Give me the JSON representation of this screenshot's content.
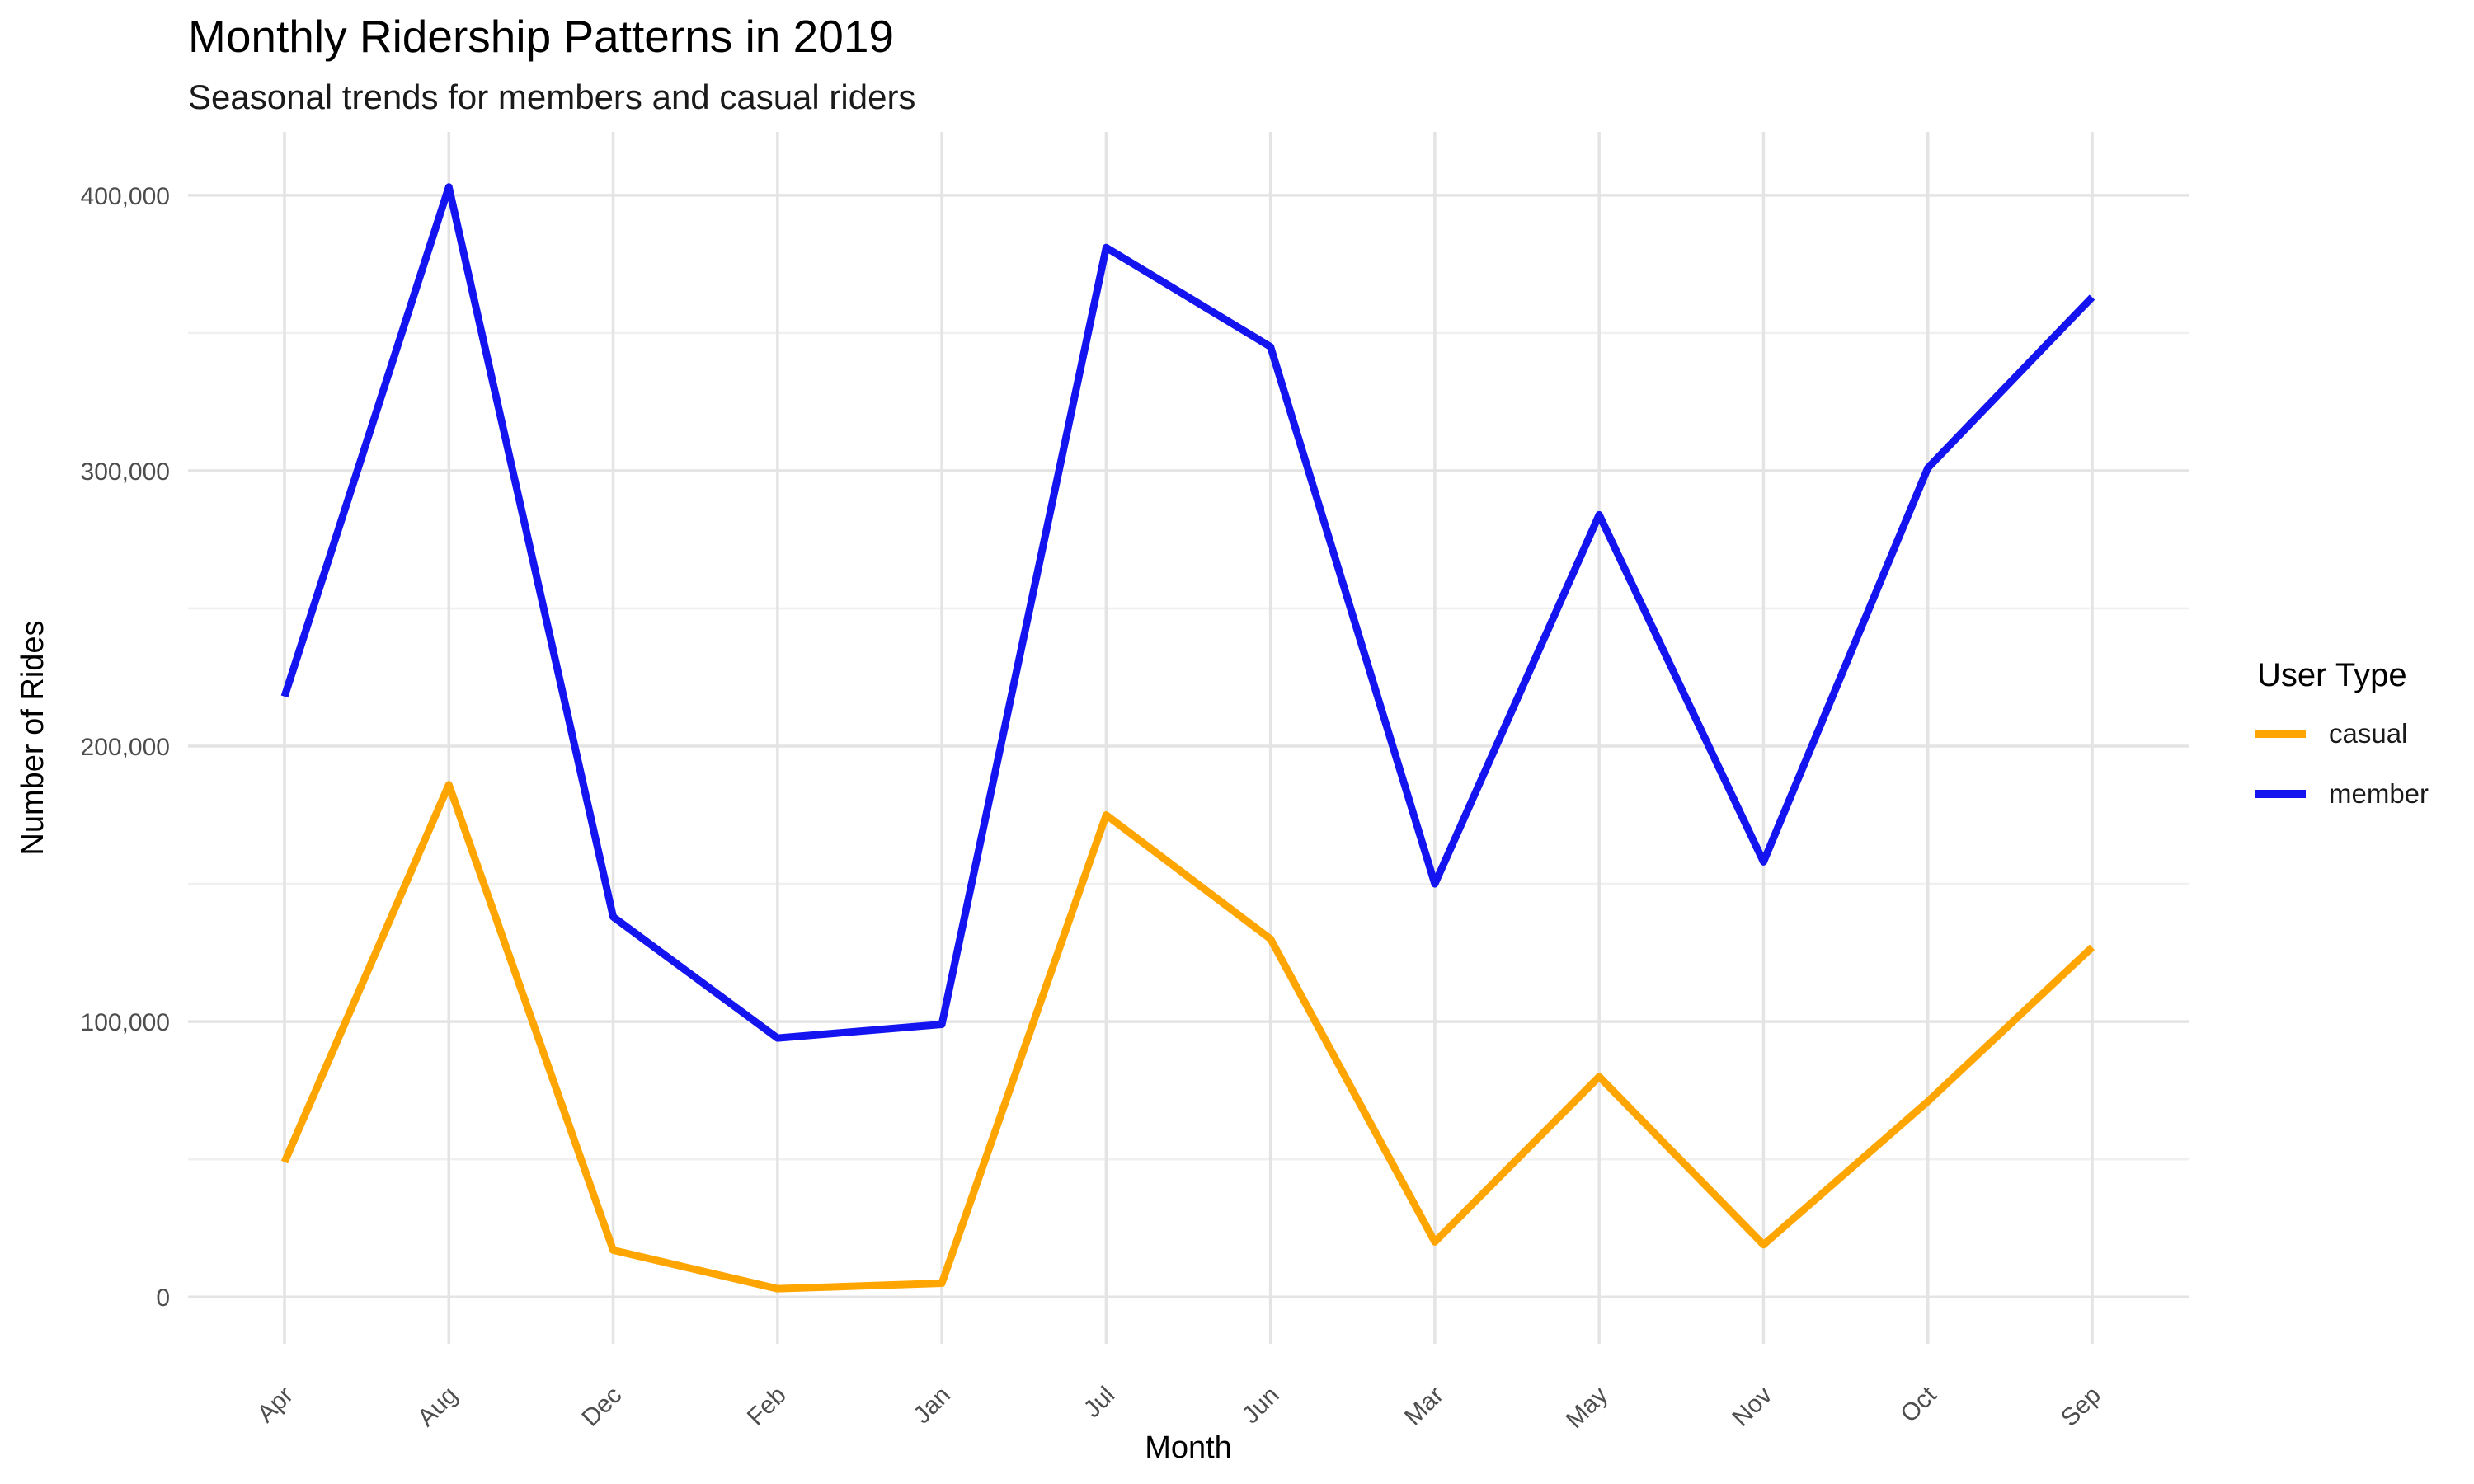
{
  "chart_data": {
    "type": "line",
    "title": "Monthly Ridership Patterns in 2019",
    "subtitle": "Seasonal trends for members and casual riders",
    "xlabel": "Month",
    "ylabel": "Number of Rides",
    "legend_title": "User Type",
    "legend_position": "right",
    "grid": true,
    "categories": [
      "Apr",
      "Aug",
      "Dec",
      "Feb",
      "Jan",
      "Jul",
      "Jun",
      "Mar",
      "May",
      "Nov",
      "Oct",
      "Sep"
    ],
    "series": [
      {
        "name": "casual",
        "color": "#FFA500",
        "values": [
          49000,
          186000,
          17000,
          3000,
          5000,
          175000,
          130000,
          20000,
          80000,
          19000,
          71000,
          127000
        ]
      },
      {
        "name": "member",
        "color": "#1414F0",
        "values": [
          218000,
          403000,
          138000,
          94000,
          99000,
          381000,
          345000,
          150000,
          284000,
          158000,
          301000,
          363000
        ]
      }
    ],
    "ylim": [
      -17000,
      423000
    ],
    "y_ticks": [
      {
        "value": 0,
        "label": "0"
      },
      {
        "value": 100000,
        "label": "100,000"
      },
      {
        "value": 200000,
        "label": "200,000"
      },
      {
        "value": 300000,
        "label": "300,000"
      },
      {
        "value": 400000,
        "label": "400,000"
      }
    ],
    "y_minor_ticks": [
      50000,
      150000,
      250000,
      350000
    ],
    "colors": {
      "background": "#FFFFFF",
      "grid_major": "#E4E4E4",
      "grid_minor": "#F0F0F0",
      "tick_text": "#4D4D4D",
      "text": "#000000"
    }
  }
}
